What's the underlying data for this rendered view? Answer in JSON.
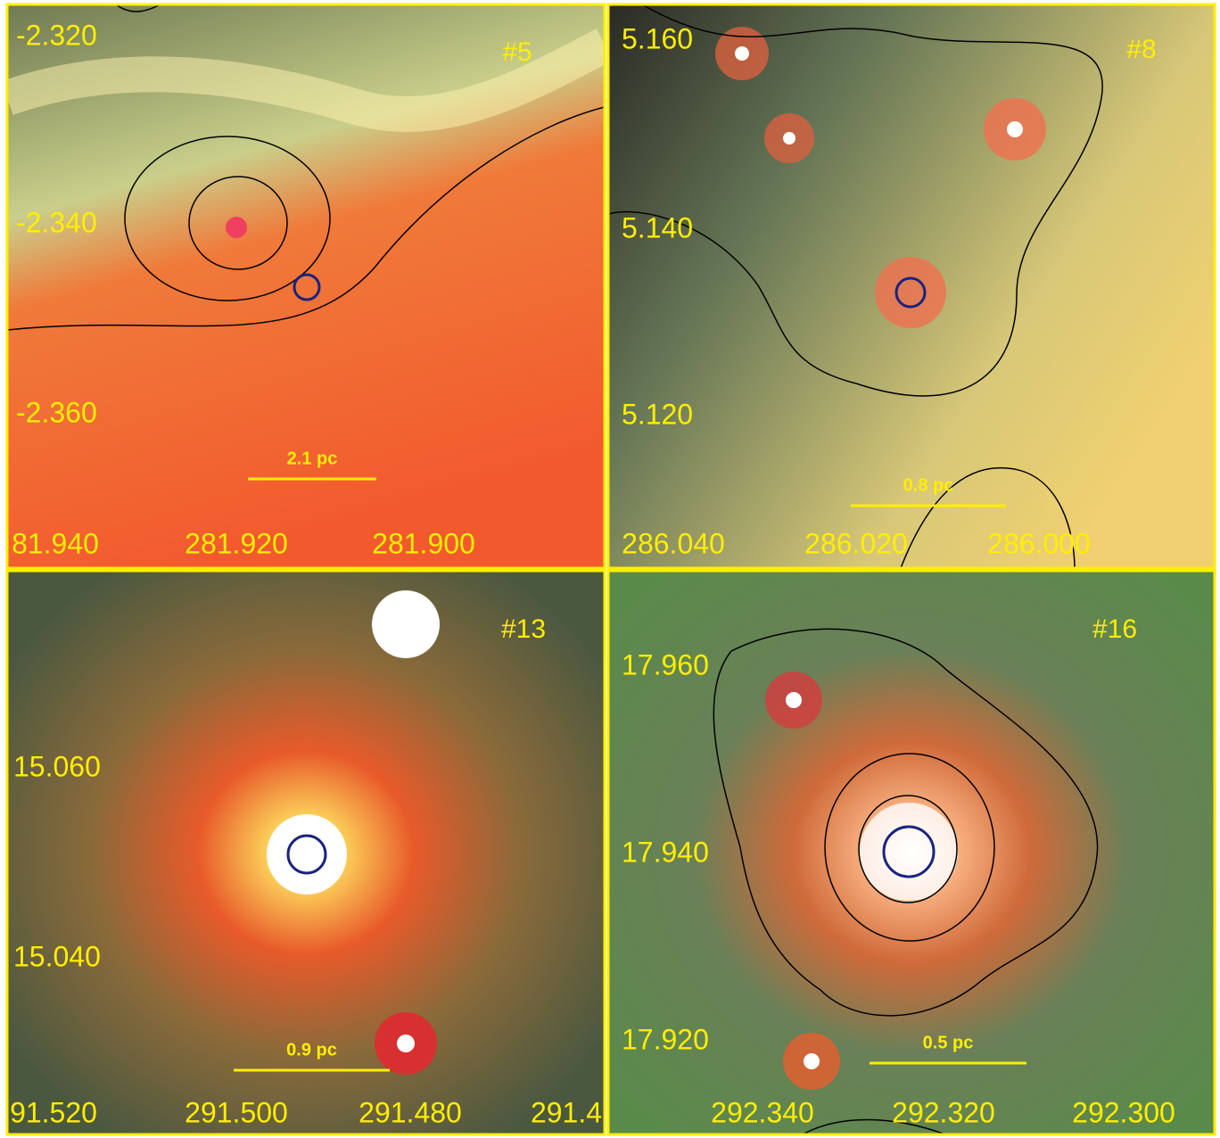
{
  "panels": [
    {
      "id": "#5",
      "scale": "2.1 pc",
      "y_labels": [
        "-2.320",
        "-2.340",
        "-2.360"
      ],
      "x_labels": [
        "81.940",
        "281.920",
        "281.900"
      ]
    },
    {
      "id": "#8",
      "scale": "0.8 pc",
      "y_labels": [
        "5.160",
        "5.140",
        "5.120"
      ],
      "x_labels": [
        "286.040",
        "286.020",
        "286.000"
      ]
    },
    {
      "id": "#13",
      "scale": "0.9 pc",
      "y_labels": [
        "15.060",
        "15.040"
      ],
      "x_labels": [
        "91.520",
        "291.500",
        "291.480",
        "291.4"
      ]
    },
    {
      "id": "#16",
      "scale": "0.5 pc",
      "y_labels": [
        "17.960",
        "17.940",
        "17.920"
      ],
      "x_labels": [
        "292.340",
        "292.320",
        "292.300"
      ]
    }
  ]
}
